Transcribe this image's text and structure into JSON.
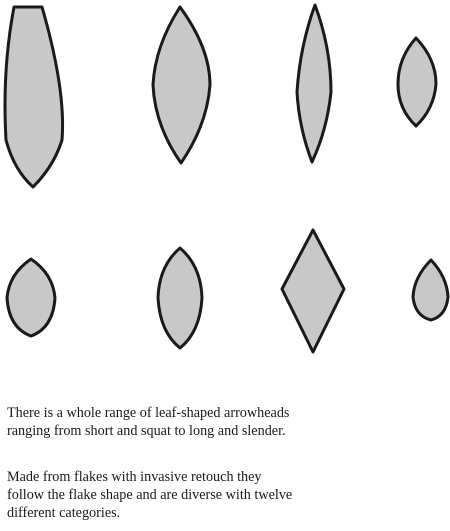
{
  "colors": {
    "fill": "#c8c8c8",
    "stroke": "#1a1a1a",
    "background": "#ffffff"
  },
  "figure": {
    "subject": "leaf-shaped arrowheads",
    "count": 8,
    "rows": 2
  },
  "captions": [
    {
      "lines": [
        "There is a whole range of leaf-shaped arrowheads",
        "ranging from short and squat to long and slender."
      ]
    },
    {
      "lines": [
        "Made from flakes with invasive retouch they",
        "follow the flake shape and are diverse with twelve",
        "different categories."
      ]
    }
  ]
}
